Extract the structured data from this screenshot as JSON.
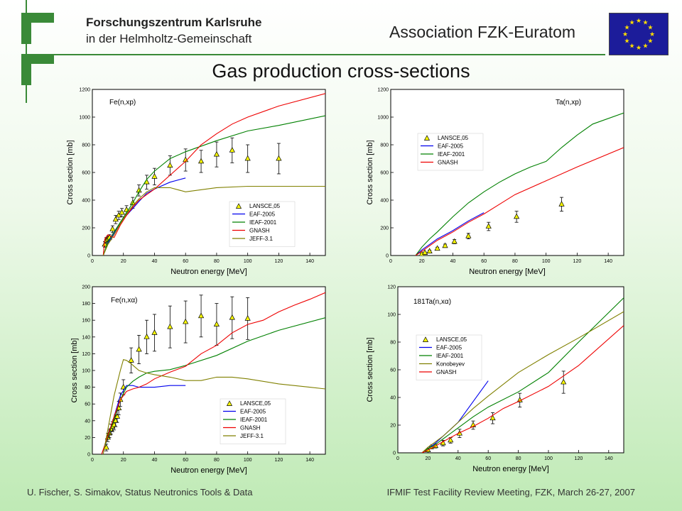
{
  "header": {
    "institution_line1": "Forschungszentrum Karlsruhe",
    "institution_line2": "in der Helmholtz-Gemeinschaft",
    "association": "Association FZK-Euratom"
  },
  "slide_title": "Gas production cross-sections",
  "footer": {
    "left": "U. Fischer, S. Simakov, Status Neutronics Tools & Data",
    "right": "IFMIF Test Facility Review Meeting, FZK, March 26-27, 2007"
  },
  "colors": {
    "brand_green": "#3a8a38",
    "eu_blue": "#1c1c9a",
    "eu_star": "#ffde00",
    "marker": "#ffff00",
    "LANSCE": "#000000",
    "EAF-2005": "#0000ee",
    "IEAF-2001": "#008000",
    "GNASH": "#ee0000",
    "JEFF-3.1": "#808000",
    "Konobeyev": "#808000"
  },
  "chart_data": [
    {
      "type": "line",
      "annotation": "Fe(n,xp)",
      "xlabel": "Neutron energy [MeV]",
      "ylabel": "Cross section [mb]",
      "xlim": [
        0,
        150
      ],
      "ylim": [
        0,
        1200
      ],
      "xticks": [
        0,
        20,
        40,
        60,
        80,
        100,
        120,
        140
      ],
      "yticks": [
        0,
        200,
        400,
        600,
        800,
        1000,
        1200
      ],
      "legend": [
        "LANSCE,05",
        "EAF-2005",
        "IEAF-2001",
        "GNASH",
        "JEFF-3.1"
      ],
      "series": [
        {
          "name": "LANSCE,05",
          "kind": "points",
          "x": [
            8,
            9,
            10,
            11,
            13,
            15,
            17,
            19,
            22,
            26,
            30,
            35,
            40,
            50,
            60,
            70,
            80,
            90,
            100,
            120
          ],
          "y": [
            80,
            110,
            120,
            130,
            190,
            260,
            290,
            310,
            330,
            380,
            470,
            530,
            570,
            650,
            690,
            680,
            730,
            760,
            700,
            700
          ],
          "err": [
            20,
            20,
            20,
            20,
            25,
            30,
            30,
            30,
            30,
            40,
            40,
            50,
            60,
            70,
            80,
            80,
            90,
            90,
            100,
            110
          ]
        },
        {
          "name": "EAF-2005",
          "kind": "line",
          "x": [
            7,
            10,
            14,
            18,
            22,
            26,
            30,
            35,
            40,
            50,
            60
          ],
          "y": [
            0,
            90,
            160,
            240,
            290,
            340,
            390,
            450,
            480,
            530,
            560
          ]
        },
        {
          "name": "IEAF-2001",
          "kind": "line",
          "x": [
            7,
            10,
            14,
            18,
            22,
            26,
            30,
            35,
            40,
            50,
            60,
            80,
            100,
            120,
            150
          ],
          "y": [
            0,
            100,
            170,
            240,
            310,
            380,
            460,
            550,
            610,
            700,
            750,
            830,
            900,
            940,
            1010
          ]
        },
        {
          "name": "GNASH",
          "kind": "line",
          "x": [
            7,
            8,
            10,
            12,
            14,
            18,
            22,
            26,
            30,
            35,
            40,
            50,
            60,
            70,
            80,
            90,
            100,
            120,
            150
          ],
          "y": [
            0,
            120,
            150,
            140,
            130,
            220,
            290,
            350,
            400,
            440,
            480,
            580,
            680,
            800,
            880,
            950,
            1000,
            1080,
            1170
          ]
        },
        {
          "name": "JEFF-3.1",
          "kind": "line",
          "x": [
            7,
            10,
            14,
            18,
            22,
            26,
            30,
            35,
            40,
            50,
            60,
            80,
            100,
            150
          ],
          "y": [
            0,
            80,
            150,
            230,
            300,
            360,
            410,
            460,
            490,
            490,
            460,
            490,
            500,
            500
          ]
        }
      ]
    },
    {
      "type": "line",
      "annotation": "Ta(n,xp)",
      "xlabel": "Neutron energy [MeV]",
      "ylabel": "Cross section [mb]",
      "xlim": [
        0,
        150
      ],
      "ylim": [
        0,
        1200
      ],
      "xticks": [
        0,
        20,
        40,
        60,
        80,
        100,
        120,
        140
      ],
      "yticks": [
        0,
        200,
        400,
        600,
        800,
        1000,
        1200
      ],
      "legend": [
        "LANSCE,05",
        "EAF-2005",
        "IEAF-2001",
        "GNASH"
      ],
      "series": [
        {
          "name": "LANSCE,05",
          "kind": "points",
          "x": [
            20,
            22,
            25,
            30,
            35,
            41,
            50,
            63,
            81,
            110
          ],
          "y": [
            10,
            20,
            30,
            50,
            70,
            100,
            140,
            210,
            280,
            370
          ],
          "err": [
            5,
            5,
            8,
            10,
            12,
            15,
            20,
            30,
            40,
            50
          ]
        },
        {
          "name": "EAF-2005",
          "kind": "line",
          "x": [
            16,
            20,
            25,
            30,
            40,
            50,
            60
          ],
          "y": [
            0,
            40,
            80,
            120,
            180,
            250,
            310
          ]
        },
        {
          "name": "IEAF-2001",
          "kind": "line",
          "x": [
            16,
            20,
            25,
            30,
            40,
            50,
            60,
            70,
            80,
            90,
            100,
            110,
            120,
            130,
            150
          ],
          "y": [
            0,
            60,
            120,
            170,
            280,
            380,
            460,
            530,
            590,
            640,
            680,
            780,
            870,
            950,
            1030
          ]
        },
        {
          "name": "GNASH",
          "kind": "line",
          "x": [
            16,
            20,
            25,
            30,
            40,
            50,
            60,
            70,
            80,
            100,
            120,
            150
          ],
          "y": [
            0,
            30,
            70,
            110,
            170,
            240,
            300,
            370,
            440,
            540,
            640,
            780
          ]
        }
      ]
    },
    {
      "type": "line",
      "annotation": "Fe(n,xα)",
      "xlabel": "Neutron energy [MeV]",
      "ylabel": "Cross section [mb]",
      "xlim": [
        0,
        150
      ],
      "ylim": [
        0,
        200
      ],
      "xticks": [
        0,
        20,
        40,
        60,
        80,
        100,
        120,
        140
      ],
      "yticks": [
        0,
        20,
        40,
        60,
        80,
        100,
        120,
        140,
        160,
        180,
        200
      ],
      "legend": [
        "LANSCE,05",
        "EAF-2005",
        "IEAF-2001",
        "GNASH",
        "JEFF-3.1"
      ],
      "series": [
        {
          "name": "LANSCE,05",
          "kind": "points",
          "x": [
            9,
            10,
            11,
            12,
            13,
            14,
            15,
            16,
            17,
            18,
            20,
            25,
            30,
            35,
            40,
            50,
            60,
            70,
            80,
            90,
            100
          ],
          "y": [
            8,
            20,
            25,
            30,
            33,
            35,
            40,
            45,
            55,
            65,
            80,
            112,
            125,
            140,
            145,
            152,
            158,
            165,
            155,
            163,
            162
          ],
          "err": [
            4,
            5,
            5,
            6,
            6,
            6,
            7,
            7,
            8,
            8,
            9,
            15,
            17,
            20,
            22,
            25,
            25,
            25,
            25,
            25,
            25
          ]
        },
        {
          "name": "EAF-2005",
          "kind": "line",
          "x": [
            6,
            10,
            14,
            18,
            22,
            26,
            30,
            40,
            50,
            60
          ],
          "y": [
            0,
            20,
            45,
            70,
            82,
            82,
            80,
            80,
            82,
            82
          ]
        },
        {
          "name": "IEAF-2001",
          "kind": "line",
          "x": [
            6,
            10,
            14,
            18,
            22,
            26,
            30,
            35,
            40,
            50,
            60,
            80,
            100,
            120,
            150
          ],
          "y": [
            0,
            20,
            42,
            65,
            80,
            87,
            92,
            97,
            99,
            101,
            106,
            118,
            135,
            148,
            163
          ]
        },
        {
          "name": "GNASH",
          "kind": "line",
          "x": [
            6,
            10,
            14,
            18,
            22,
            26,
            30,
            35,
            40,
            50,
            60,
            70,
            80,
            90,
            100,
            110,
            120,
            130,
            140,
            150
          ],
          "y": [
            0,
            22,
            45,
            65,
            75,
            78,
            80,
            84,
            90,
            98,
            105,
            120,
            130,
            145,
            155,
            160,
            170,
            178,
            185,
            193
          ]
        },
        {
          "name": "JEFF-3.1",
          "kind": "line",
          "x": [
            7,
            10,
            14,
            18,
            20,
            22,
            25,
            30,
            35,
            40,
            50,
            60,
            70,
            80,
            90,
            100,
            120,
            140,
            150
          ],
          "y": [
            0,
            30,
            70,
            100,
            113,
            112,
            108,
            100,
            97,
            95,
            92,
            88,
            88,
            92,
            92,
            90,
            84,
            80,
            78
          ]
        }
      ]
    },
    {
      "type": "line",
      "annotation": "181Ta(n,xα)",
      "xlabel": "Neutron energy [MeV]",
      "ylabel": "Cross section [mb]",
      "xlim": [
        0,
        150
      ],
      "ylim": [
        0,
        120
      ],
      "xticks": [
        0,
        20,
        40,
        60,
        80,
        100,
        120,
        140
      ],
      "yticks": [
        0,
        20,
        40,
        60,
        80,
        100,
        120
      ],
      "legend": [
        "LANSCE,05",
        "EAF-2005",
        "IEAF-2001",
        "Konobeyev",
        "GNASH"
      ],
      "series": [
        {
          "name": "LANSCE,05",
          "kind": "points",
          "x": [
            20,
            22,
            25,
            30,
            35,
            41,
            50,
            63,
            81,
            110
          ],
          "y": [
            2,
            4,
            5,
            7,
            9,
            14,
            20,
            25,
            38,
            51
          ],
          "err": [
            1,
            1,
            1.5,
            2,
            2,
            3,
            3,
            4,
            5,
            8
          ]
        },
        {
          "name": "EAF-2005",
          "kind": "line",
          "x": [
            16,
            20,
            25,
            30,
            40,
            50,
            60
          ],
          "y": [
            0,
            3,
            7,
            12,
            22,
            37,
            52
          ]
        },
        {
          "name": "IEAF-2001",
          "kind": "line",
          "x": [
            16,
            20,
            25,
            30,
            40,
            50,
            60,
            80,
            100,
            120,
            150
          ],
          "y": [
            0,
            3,
            6,
            10,
            18,
            26,
            33,
            44,
            58,
            80,
            112
          ]
        },
        {
          "name": "Konobeyev",
          "kind": "line",
          "x": [
            16,
            20,
            25,
            30,
            40,
            50,
            60,
            80,
            100,
            120,
            150
          ],
          "y": [
            0,
            4,
            8,
            12,
            22,
            32,
            41,
            58,
            71,
            83,
            102
          ]
        },
        {
          "name": "GNASH",
          "kind": "line",
          "x": [
            16,
            20,
            25,
            30,
            40,
            50,
            60,
            70,
            80,
            100,
            120,
            150
          ],
          "y": [
            0,
            2,
            5,
            8,
            14,
            19,
            25,
            32,
            37,
            48,
            63,
            92
          ]
        }
      ]
    }
  ]
}
